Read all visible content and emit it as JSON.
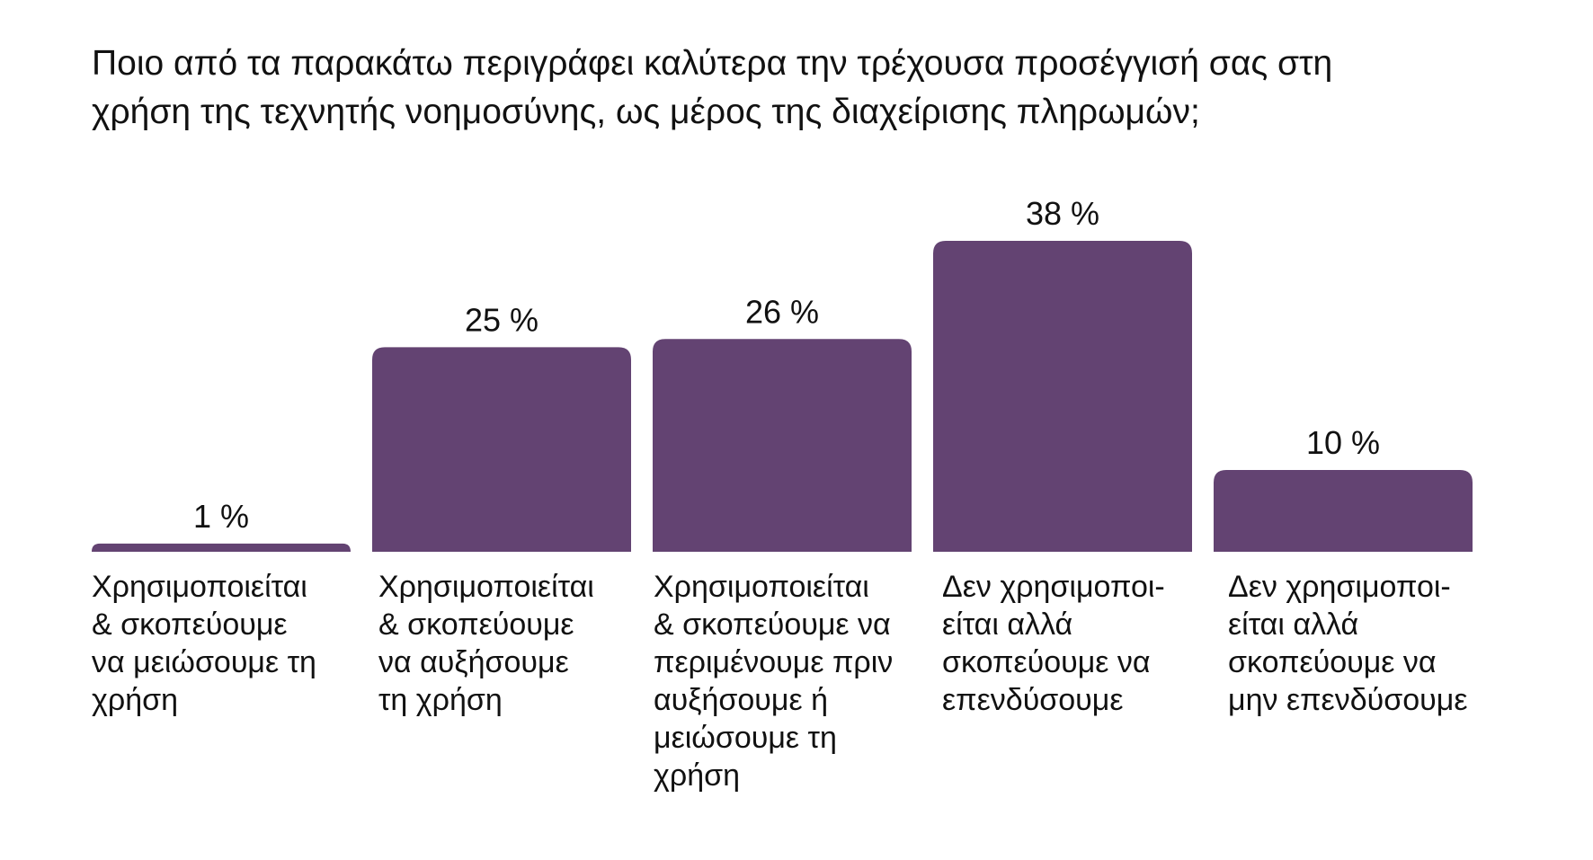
{
  "chart_data": {
    "type": "bar",
    "title_lines": [
      "Ποιο από τα παρακάτω περιγράφει καλύτερα την τρέχουσα προσέγγισή σας στη",
      "χρήση της τεχνητής νοημοσύνης, ως μέρος της διαχείρισης πληρωμών;"
    ],
    "categories": [
      [
        "Χρησιμοποιείται",
        "& σκοπεύουμε",
        "να μειώσουμε τη",
        "χρήση"
      ],
      [
        "Χρησιμοποιείται",
        "& σκοπεύουμε",
        "να αυξήσουμε",
        "τη χρήση"
      ],
      [
        "Χρησιμοποιείται",
        "& σκοπεύουμε να",
        "περιμένουμε πριν",
        "αυξήσουμε ή",
        "μειώσουμε τη",
        "χρήση"
      ],
      [
        "Δεν χρησιμοποι-",
        "είται αλλά",
        "σκοπεύουμε να",
        "επενδύσουμε"
      ],
      [
        "Δεν χρησιμοποι-",
        "είται αλλά",
        "σκοπεύουμε να",
        "μην επενδύσουμε"
      ]
    ],
    "values": [
      1,
      25,
      26,
      38,
      10
    ],
    "value_labels": [
      "1 %",
      "25 %",
      "26 %",
      "38 %",
      "10 %"
    ],
    "bar_color": "#634372",
    "ylim": [
      0,
      38
    ],
    "grid": false,
    "legend": "none"
  }
}
